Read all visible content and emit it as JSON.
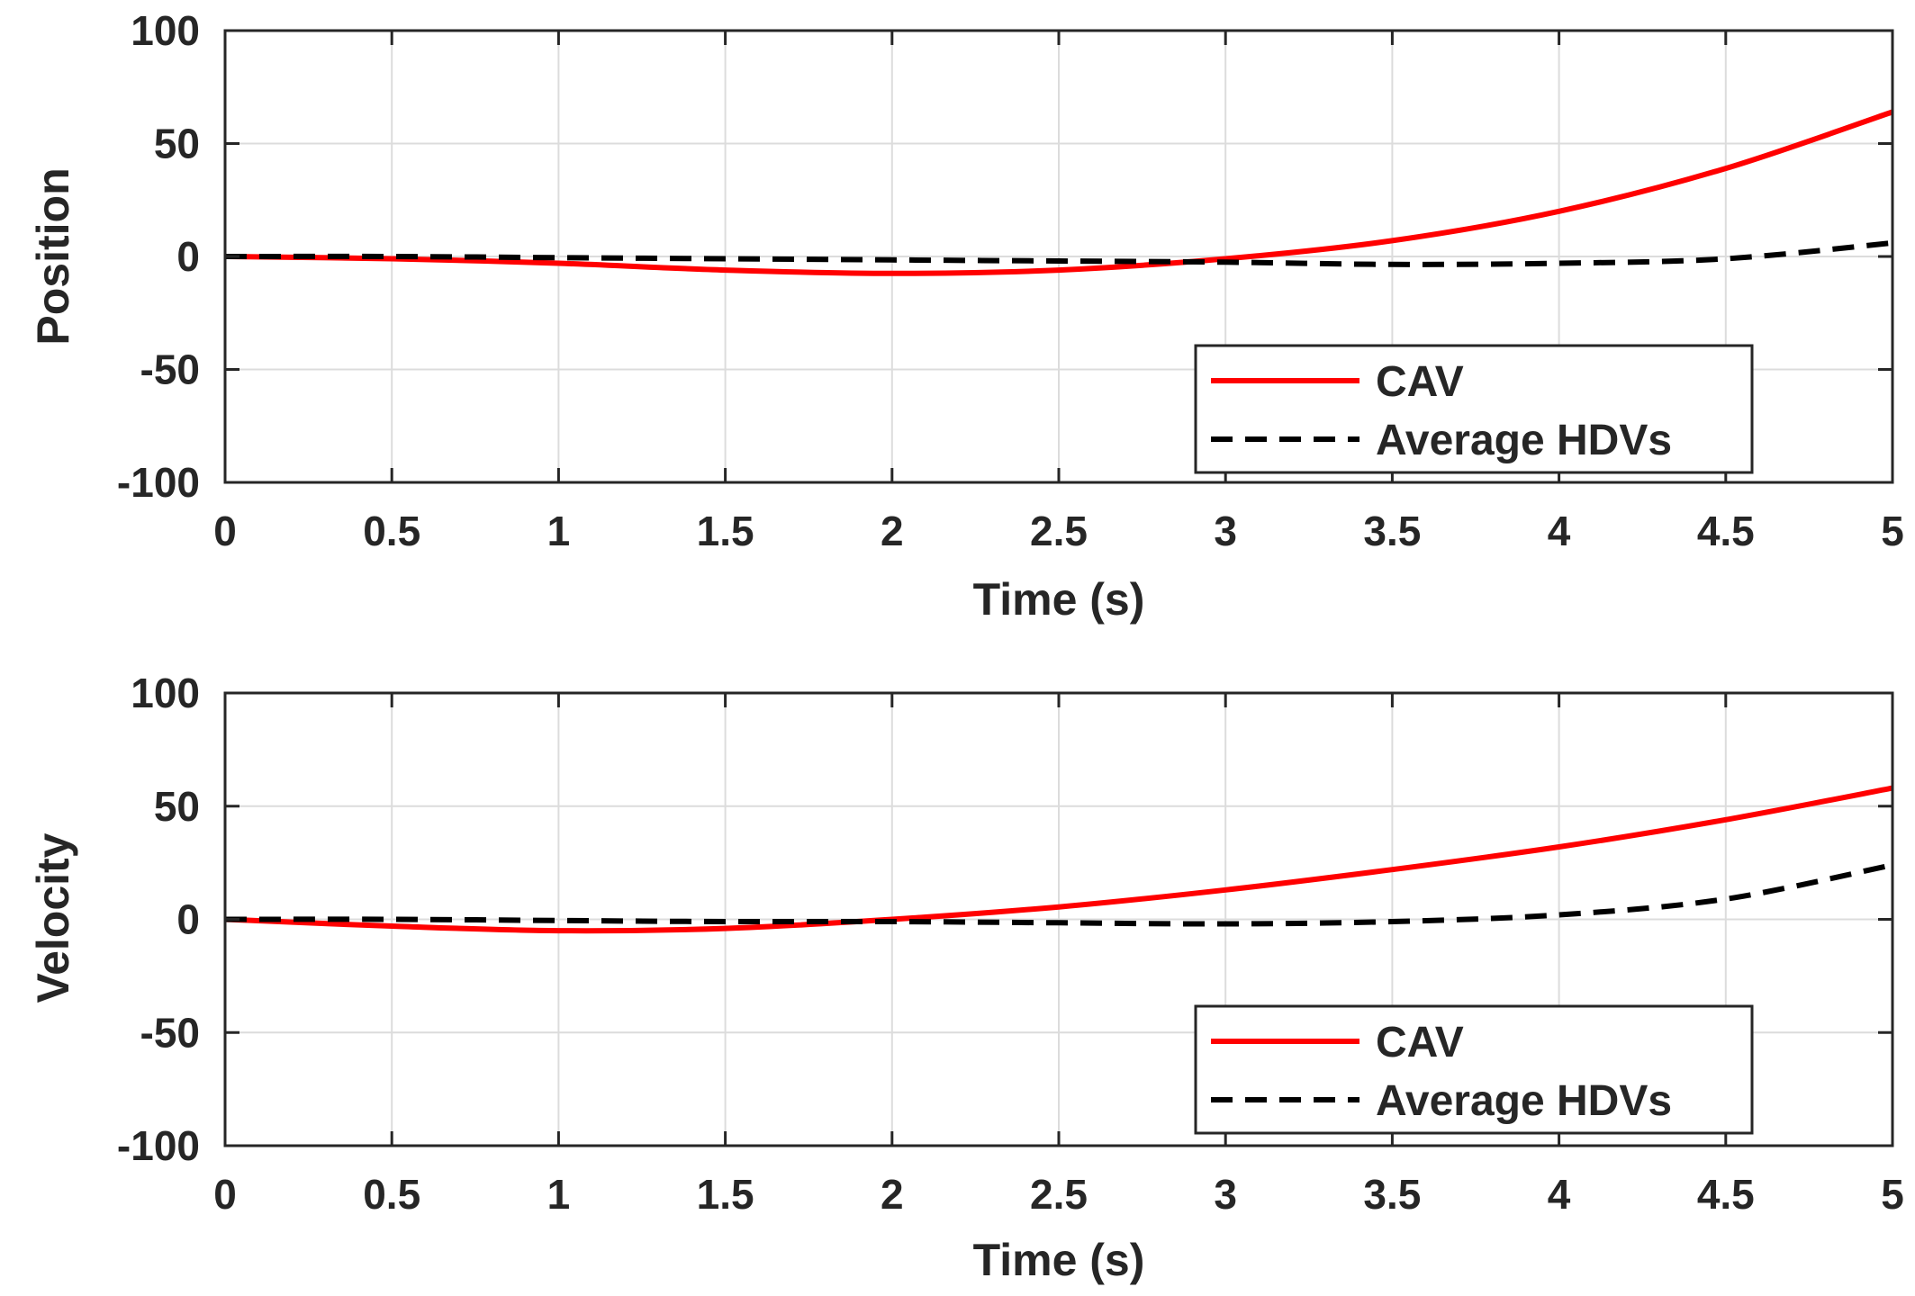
{
  "chart_data": [
    {
      "type": "line",
      "title": "",
      "xlabel": "Time (s)",
      "ylabel": "Position",
      "xlim": [
        0,
        5
      ],
      "ylim": [
        -100,
        100
      ],
      "xticks": [
        "0",
        "0.5",
        "1",
        "1.5",
        "2",
        "2.5",
        "3",
        "3.5",
        "4",
        "4.5",
        "5"
      ],
      "yticks": [
        "100",
        "50",
        "0",
        "-50",
        "-100"
      ],
      "grid": true,
      "legend_position": "lower-right",
      "x": [
        0,
        0.5,
        1,
        1.5,
        2,
        2.5,
        3,
        3.5,
        4,
        4.5,
        5
      ],
      "series": [
        {
          "name": "CAV",
          "style": "solid",
          "color": "#ff0000",
          "values": [
            0,
            -1,
            -3,
            -6,
            -7.5,
            -6,
            -1,
            7,
            20,
            39,
            64
          ]
        },
        {
          "name": "Average HDVs",
          "style": "dashed",
          "color": "#000000",
          "values": [
            0,
            0,
            -0.5,
            -1,
            -1.5,
            -2,
            -2.5,
            -3.5,
            -3,
            -1,
            6
          ]
        }
      ]
    },
    {
      "type": "line",
      "title": "",
      "xlabel": "Time (s)",
      "ylabel": "Velocity",
      "xlim": [
        0,
        5
      ],
      "ylim": [
        -100,
        100
      ],
      "xticks": [
        "0",
        "0.5",
        "1",
        "1.5",
        "2",
        "2.5",
        "3",
        "3.5",
        "4",
        "4.5",
        "5"
      ],
      "yticks": [
        "100",
        "50",
        "0",
        "-50",
        "-100"
      ],
      "grid": true,
      "legend_position": "lower-right",
      "x": [
        0,
        0.5,
        1,
        1.5,
        2,
        2.5,
        3,
        3.5,
        4,
        4.5,
        5
      ],
      "series": [
        {
          "name": "CAV",
          "style": "solid",
          "color": "#ff0000",
          "values": [
            0,
            -3,
            -5,
            -4,
            0,
            5.5,
            13,
            22,
            32,
            44,
            58
          ]
        },
        {
          "name": "Average HDVs",
          "style": "dashed",
          "color": "#000000",
          "values": [
            0,
            0,
            -0.5,
            -1,
            -1,
            -1.5,
            -2,
            -1,
            2,
            9,
            24
          ]
        }
      ]
    }
  ]
}
